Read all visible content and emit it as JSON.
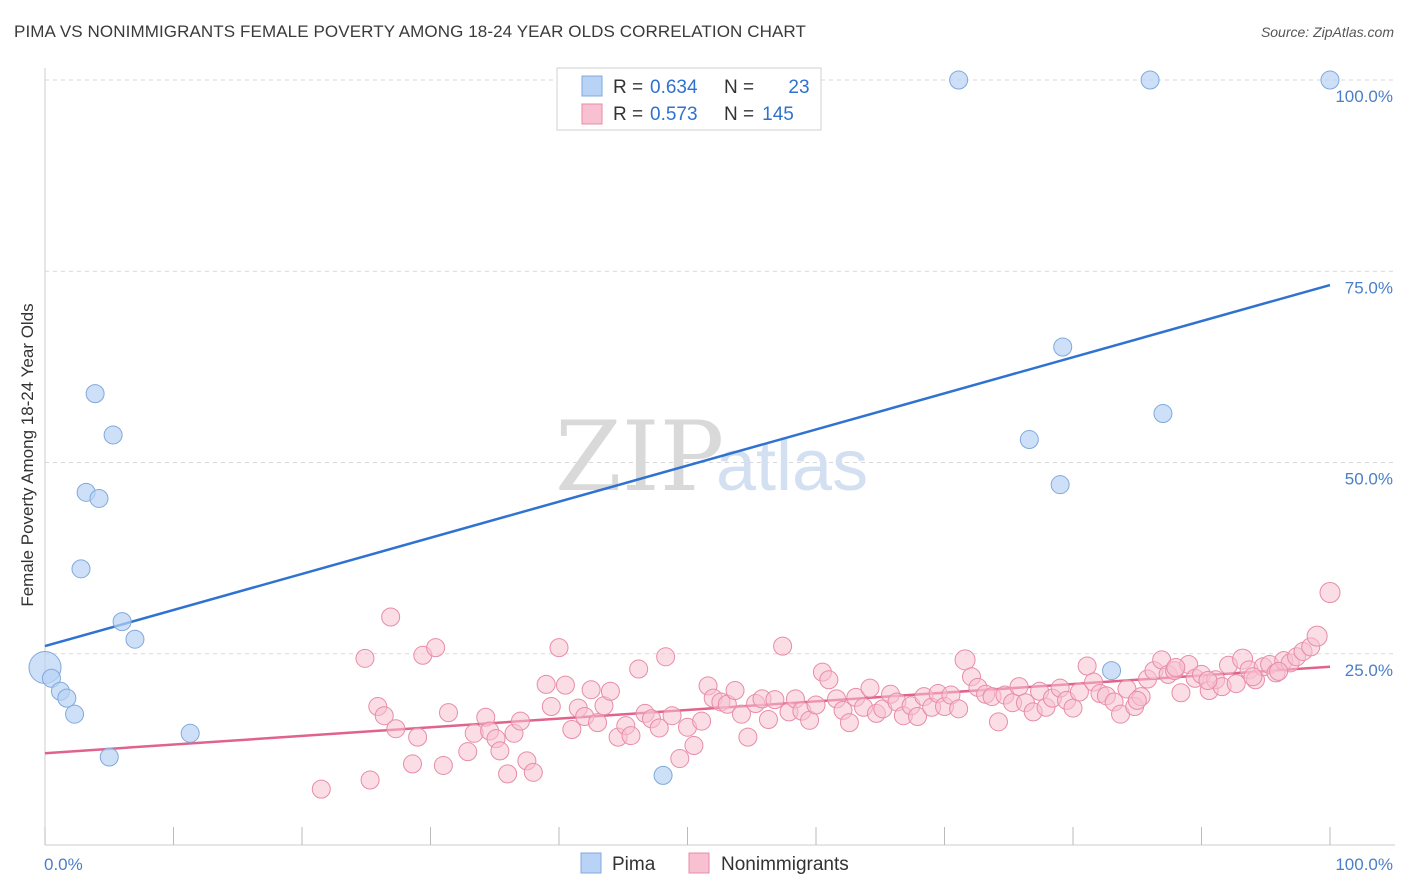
{
  "title": "PIMA VS NONIMMIGRANTS FEMALE POVERTY AMONG 18-24 YEAR OLDS CORRELATION CHART",
  "source": "Source: ZipAtlas.com",
  "watermark": {
    "zip": "ZIP",
    "atlas": "atlas"
  },
  "legend_box": [
    {
      "r_label": "R =",
      "r_value": "0.634",
      "n_label": "N =",
      "n_value": "23"
    },
    {
      "r_label": "R =",
      "r_value": "0.573",
      "n_label": "N =",
      "n_value": "145"
    }
  ],
  "colors": {
    "pima_fill": "#b8d3f5",
    "pima_stroke": "#7fa9dc",
    "pima_line": "#2f72d0",
    "non_fill": "#f7c1d1",
    "non_stroke": "#e88ca8",
    "non_line": "#e0628d",
    "tick_text": "#4a7fc8",
    "grid": "#d8d8d8"
  },
  "chart_data": {
    "type": "scatter",
    "xlabel": "",
    "ylabel": "Female Poverty Among 18-24 Year Olds",
    "xlim": [
      0,
      100
    ],
    "ylim": [
      0,
      100
    ],
    "x_tick_labels": [
      {
        "v": 0,
        "label": "0.0%"
      },
      {
        "v": 100,
        "label": "100.0%"
      }
    ],
    "y_tick_labels": [
      {
        "v": 25,
        "label": "25.0%"
      },
      {
        "v": 50,
        "label": "50.0%"
      },
      {
        "v": 75,
        "label": "75.0%"
      },
      {
        "v": 100,
        "label": "100.0%"
      }
    ],
    "grid": true,
    "legend_position": "bottom-center",
    "series": [
      {
        "name": "Pima",
        "R": 0.634,
        "N": 23,
        "trend": {
          "x0": 0,
          "y0": 26.0,
          "x1": 100,
          "y1": 73.2
        },
        "points": [
          [
            0,
            23.2,
            16
          ],
          [
            0.5,
            21.8,
            9
          ],
          [
            1.2,
            20.1,
            9
          ],
          [
            1.7,
            19.2,
            9
          ],
          [
            2.3,
            17.1,
            9
          ],
          [
            2.8,
            36.1,
            9
          ],
          [
            3.9,
            59.0,
            9
          ],
          [
            3.2,
            46.1,
            9
          ],
          [
            4.2,
            45.3,
            9
          ],
          [
            5.3,
            53.6,
            9
          ],
          [
            6.0,
            29.2,
            9
          ],
          [
            7.0,
            26.9,
            9
          ],
          [
            5.0,
            11.5,
            9
          ],
          [
            11.3,
            14.6,
            9
          ],
          [
            48.1,
            9.1,
            9
          ],
          [
            71.1,
            100,
            9
          ],
          [
            86.0,
            100,
            9
          ],
          [
            100,
            100,
            9
          ],
          [
            79.2,
            65.1,
            9
          ],
          [
            76.6,
            53.0,
            9
          ],
          [
            79.0,
            47.1,
            9
          ],
          [
            87.0,
            56.4,
            9
          ],
          [
            83.0,
            22.8,
            9
          ]
        ]
      },
      {
        "name": "Nonimmigrants",
        "R": 0.573,
        "N": 145,
        "trend": {
          "x0": 0,
          "y0": 12.0,
          "x1": 100,
          "y1": 23.3
        },
        "points": [
          [
            21.5,
            7.3,
            9
          ],
          [
            25.3,
            8.5,
            9
          ],
          [
            24.9,
            24.4,
            9
          ],
          [
            25.9,
            18.1,
            9
          ],
          [
            26.4,
            16.9,
            9
          ],
          [
            26.9,
            29.8,
            9
          ],
          [
            27.3,
            15.2,
            9
          ],
          [
            28.6,
            10.6,
            9
          ],
          [
            29.0,
            14.1,
            9
          ],
          [
            29.4,
            24.8,
            9
          ],
          [
            30.4,
            25.8,
            9
          ],
          [
            31.0,
            10.4,
            9
          ],
          [
            31.4,
            17.3,
            9
          ],
          [
            32.9,
            12.2,
            9
          ],
          [
            33.4,
            14.6,
            9
          ],
          [
            34.3,
            16.7,
            9
          ],
          [
            34.6,
            14.9,
            9
          ],
          [
            35.1,
            13.9,
            9
          ],
          [
            35.4,
            12.3,
            9
          ],
          [
            36.0,
            9.3,
            9
          ],
          [
            36.5,
            14.6,
            9
          ],
          [
            37.0,
            16.2,
            9
          ],
          [
            37.5,
            11.0,
            9
          ],
          [
            38.0,
            9.5,
            9
          ],
          [
            39.0,
            21.0,
            9
          ],
          [
            39.4,
            18.1,
            9
          ],
          [
            40.0,
            25.8,
            9
          ],
          [
            40.5,
            20.9,
            9
          ],
          [
            41.0,
            15.1,
            9
          ],
          [
            41.5,
            17.9,
            9
          ],
          [
            42.0,
            16.8,
            9
          ],
          [
            42.5,
            20.3,
            9
          ],
          [
            43.0,
            16.0,
            9
          ],
          [
            43.5,
            18.2,
            9
          ],
          [
            44.0,
            20.1,
            9
          ],
          [
            44.6,
            14.1,
            9
          ],
          [
            45.2,
            15.6,
            9
          ],
          [
            45.6,
            14.3,
            9
          ],
          [
            46.2,
            23.0,
            9
          ],
          [
            46.7,
            17.2,
            9
          ],
          [
            47.2,
            16.5,
            9
          ],
          [
            47.8,
            15.3,
            9
          ],
          [
            48.3,
            24.6,
            9
          ],
          [
            48.8,
            16.9,
            9
          ],
          [
            49.4,
            11.3,
            9
          ],
          [
            50.0,
            15.4,
            9
          ],
          [
            50.5,
            13.0,
            9
          ],
          [
            51.1,
            16.2,
            9
          ],
          [
            51.6,
            20.8,
            9
          ],
          [
            52.0,
            19.2,
            9
          ],
          [
            52.6,
            18.7,
            9
          ],
          [
            53.1,
            18.4,
            9
          ],
          [
            53.7,
            20.2,
            9
          ],
          [
            54.2,
            17.1,
            9
          ],
          [
            54.7,
            14.1,
            9
          ],
          [
            55.3,
            18.5,
            9
          ],
          [
            55.8,
            19.1,
            9
          ],
          [
            56.3,
            16.4,
            9
          ],
          [
            56.8,
            19.0,
            9
          ],
          [
            57.4,
            26.0,
            9
          ],
          [
            57.9,
            17.4,
            9
          ],
          [
            58.4,
            19.1,
            9
          ],
          [
            58.9,
            17.5,
            9
          ],
          [
            59.5,
            16.3,
            9
          ],
          [
            60.0,
            18.3,
            9
          ],
          [
            60.5,
            22.6,
            9
          ],
          [
            61.0,
            21.6,
            9
          ],
          [
            61.6,
            19.1,
            9
          ],
          [
            62.1,
            17.6,
            9
          ],
          [
            62.6,
            16.0,
            9
          ],
          [
            63.1,
            19.3,
            9
          ],
          [
            63.7,
            18.0,
            9
          ],
          [
            64.2,
            20.5,
            9
          ],
          [
            64.7,
            17.2,
            9
          ],
          [
            65.2,
            17.8,
            9
          ],
          [
            65.8,
            19.7,
            9
          ],
          [
            66.3,
            18.7,
            9
          ],
          [
            66.8,
            16.9,
            9
          ],
          [
            67.4,
            18.2,
            9
          ],
          [
            67.9,
            16.8,
            9
          ],
          [
            68.4,
            19.4,
            9
          ],
          [
            69.0,
            18.0,
            9
          ],
          [
            69.5,
            19.8,
            9
          ],
          [
            70.0,
            18.1,
            9
          ],
          [
            70.5,
            19.6,
            9
          ],
          [
            71.1,
            17.8,
            9
          ],
          [
            71.6,
            24.2,
            10
          ],
          [
            72.1,
            22.0,
            9
          ],
          [
            72.6,
            20.6,
            9
          ],
          [
            73.2,
            19.7,
            9
          ],
          [
            73.7,
            19.4,
            9
          ],
          [
            74.2,
            16.1,
            9
          ],
          [
            74.7,
            19.6,
            9
          ],
          [
            75.3,
            18.6,
            9
          ],
          [
            75.8,
            20.7,
            9
          ],
          [
            76.3,
            18.6,
            9
          ],
          [
            76.9,
            17.4,
            9
          ],
          [
            77.4,
            20.1,
            9
          ],
          [
            77.9,
            18.0,
            9
          ],
          [
            78.4,
            19.2,
            9
          ],
          [
            79.0,
            20.5,
            9
          ],
          [
            79.5,
            18.9,
            9
          ],
          [
            80.0,
            17.9,
            9
          ],
          [
            80.5,
            20.0,
            9
          ],
          [
            81.1,
            23.4,
            9
          ],
          [
            81.6,
            21.3,
            9
          ],
          [
            82.1,
            19.8,
            9
          ],
          [
            82.6,
            19.5,
            9
          ],
          [
            83.2,
            18.7,
            9
          ],
          [
            83.7,
            17.1,
            9
          ],
          [
            84.2,
            20.4,
            9
          ],
          [
            84.8,
            18.1,
            9
          ],
          [
            85.3,
            19.4,
            9
          ],
          [
            85.8,
            21.7,
            9
          ],
          [
            86.3,
            22.8,
            9
          ],
          [
            86.9,
            24.2,
            9
          ],
          [
            87.4,
            22.3,
            9
          ],
          [
            87.9,
            22.8,
            9
          ],
          [
            88.4,
            19.9,
            9
          ],
          [
            89.0,
            23.6,
            9
          ],
          [
            89.5,
            21.8,
            9
          ],
          [
            90.0,
            22.3,
            9
          ],
          [
            90.6,
            20.2,
            9
          ],
          [
            91.1,
            21.6,
            9
          ],
          [
            91.6,
            20.7,
            9
          ],
          [
            92.1,
            23.5,
            9
          ],
          [
            92.7,
            21.1,
            9
          ],
          [
            93.2,
            24.3,
            10
          ],
          [
            93.7,
            22.9,
            9
          ],
          [
            94.2,
            21.6,
            9
          ],
          [
            94.8,
            23.3,
            9
          ],
          [
            95.3,
            23.6,
            9
          ],
          [
            95.8,
            22.5,
            9
          ],
          [
            96.4,
            24.1,
            9
          ],
          [
            96.9,
            23.8,
            9
          ],
          [
            97.4,
            24.6,
            9
          ],
          [
            97.9,
            25.3,
            9
          ],
          [
            98.5,
            25.9,
            9
          ],
          [
            99.0,
            27.3,
            10
          ],
          [
            100,
            33.0,
            10
          ],
          [
            94.0,
            22.0,
            9
          ],
          [
            85.0,
            18.9,
            9
          ],
          [
            88.0,
            23.2,
            9
          ],
          [
            90.5,
            21.5,
            9
          ],
          [
            96.0,
            22.7,
            9
          ]
        ]
      }
    ]
  },
  "bottom_legend": [
    {
      "label": "Pima"
    },
    {
      "label": "Nonimmigrants"
    }
  ]
}
